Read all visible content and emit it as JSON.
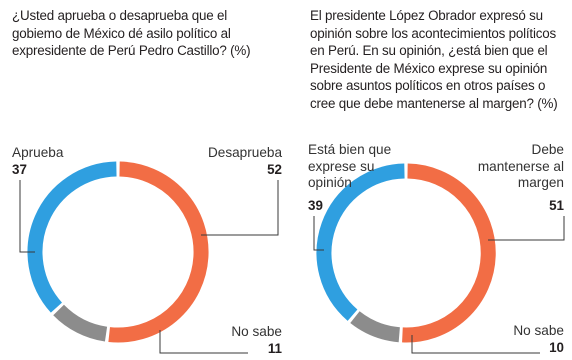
{
  "colors": {
    "blue": "#2f9fe0",
    "orange": "#f26d45",
    "gray": "#8c8c8c",
    "connector": "#3a3a3a"
  },
  "chart_data": [
    {
      "type": "pie",
      "title": "¿Usted aprueba o desaprueba que el gobiemo de México dé asilo político al expresidente de Perú Pedro Castillo? (%)",
      "slices": [
        {
          "label": "Aprueba",
          "value": 37,
          "value_label": "37",
          "color": "#2f9fe0"
        },
        {
          "label": "Desaprueba",
          "value": 52,
          "value_label": "52",
          "color": "#f26d45"
        },
        {
          "label": "No sabe",
          "value": 11,
          "value_label": "11",
          "color": "#8c8c8c"
        }
      ]
    },
    {
      "type": "pie",
      "title": "El presidente López Obrador expresó su opinión sobre los acontecimientos políticos en Perú. En su opinión, ¿está bien que el Presidente de México exprese su opinión sobre asuntos políticos en otros países o cree que debe mantenerse al margen? (%)",
      "slices": [
        {
          "label": "Está bien que exprese su opinión",
          "value": 39,
          "value_label": "39",
          "color": "#2f9fe0"
        },
        {
          "label": "Debe mantenerse al margen",
          "value": 51,
          "value_label": "51",
          "color": "#f26d45"
        },
        {
          "label": "No sabe",
          "value": 10,
          "value_label": "10",
          "color": "#8c8c8c"
        }
      ]
    }
  ]
}
